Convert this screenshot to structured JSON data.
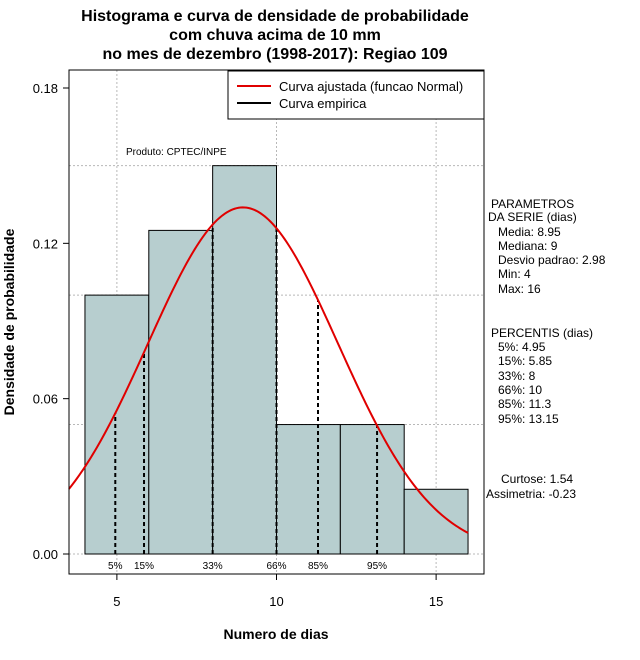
{
  "chart_data": {
    "type": "histogram",
    "title": [
      "Histograma e curva de densidade de probabilidade",
      "com chuva acima de 10 mm",
      "no mes de dezembro (1998-2017): Regiao 109"
    ],
    "xlabel": "Numero de dias",
    "ylabel": "Densidade de probabilidade",
    "xlim": [
      3.5,
      16.5
    ],
    "ylim": [
      0,
      0.18
    ],
    "xticks": [
      5,
      10,
      15
    ],
    "yticks": [
      0.0,
      0.06,
      0.12,
      0.18
    ],
    "ytick_labels": [
      "0.00",
      "0.06",
      "0.12",
      "0.18"
    ],
    "bins": [
      {
        "x0": 4,
        "x1": 6,
        "density": 0.1
      },
      {
        "x0": 6,
        "x1": 8,
        "density": 0.125
      },
      {
        "x0": 8,
        "x1": 10,
        "density": 0.15
      },
      {
        "x0": 10,
        "x1": 12,
        "density": 0.05
      },
      {
        "x0": 12,
        "x1": 14,
        "density": 0.05
      },
      {
        "x0": 14,
        "x1": 16,
        "density": 0.025
      }
    ],
    "normal_curve": {
      "mean": 8.95,
      "sd": 2.98,
      "x_from": 3.5,
      "x_to": 16
    },
    "percentile_lines": [
      {
        "label": "5%",
        "value": 4.95
      },
      {
        "label": "15%",
        "value": 5.85
      },
      {
        "label": "33%",
        "value": 8
      },
      {
        "label": "66%",
        "value": 10
      },
      {
        "label": "85%",
        "value": 11.3
      },
      {
        "label": "95%",
        "value": 13.15
      }
    ],
    "legend": [
      {
        "label": "Curva ajustada (funcao Normal)",
        "color": "#e00000"
      },
      {
        "label": "Curva empirica",
        "color": "#000000"
      }
    ],
    "legend_position": "top-right",
    "grid": true,
    "credit": "Produto: CPTEC/INPE",
    "bar_color": "#b7cecf",
    "curve_color": "#e00000"
  },
  "side_panel": {
    "parametros": [
      "PARAMETROS",
      "DA SERIE (dias)",
      "Media: 8.95",
      "Mediana: 9",
      "Desvio padrao: 2.98",
      "Min: 4",
      "Max: 16"
    ],
    "percentis": [
      "PERCENTIS (dias)",
      "5%: 4.95",
      "15%: 5.85",
      "33%: 8",
      "66%: 10",
      "85%: 11.3",
      "95%: 13.15"
    ],
    "curtose": "Curtose: 1.54",
    "assimetria": "Assimetria: -0.23"
  }
}
